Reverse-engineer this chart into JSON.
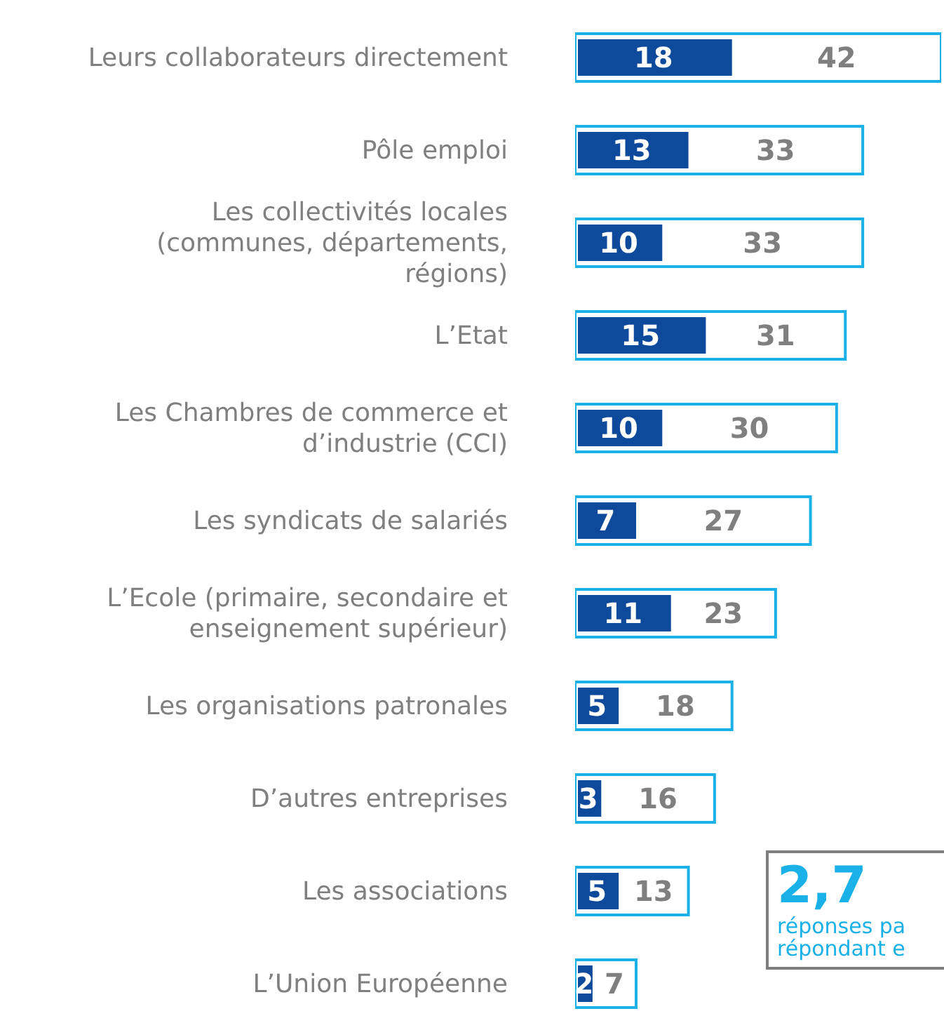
{
  "chart_data": {
    "type": "bar",
    "orientation": "horizontal",
    "categories": [
      "Leurs collaborateurs directement",
      "Pôle emploi",
      "Les collectivités locales (communes, départements, régions)",
      "L’Etat",
      "Les Chambres de commerce et d’industrie (CCI)",
      "Les syndicats de salariés",
      "L’Ecole (primaire, secondaire et enseignement supérieur)",
      "Les organisations patronales",
      "D’autres entreprises",
      "Les associations",
      "L’Union Européenne"
    ],
    "series": [
      {
        "color": "#ffffff",
        "values": [
          42,
          33,
          33,
          31,
          30,
          27,
          23,
          18,
          16,
          13,
          7
        ]
      },
      {
        "color": "#0d4a9b",
        "values": [
          18,
          13,
          10,
          15,
          10,
          7,
          11,
          5,
          3,
          5,
          2
        ]
      }
    ],
    "annotations": [
      "2,7",
      "réponses pa",
      "répondant e"
    ],
    "data_labels": true
  }
}
